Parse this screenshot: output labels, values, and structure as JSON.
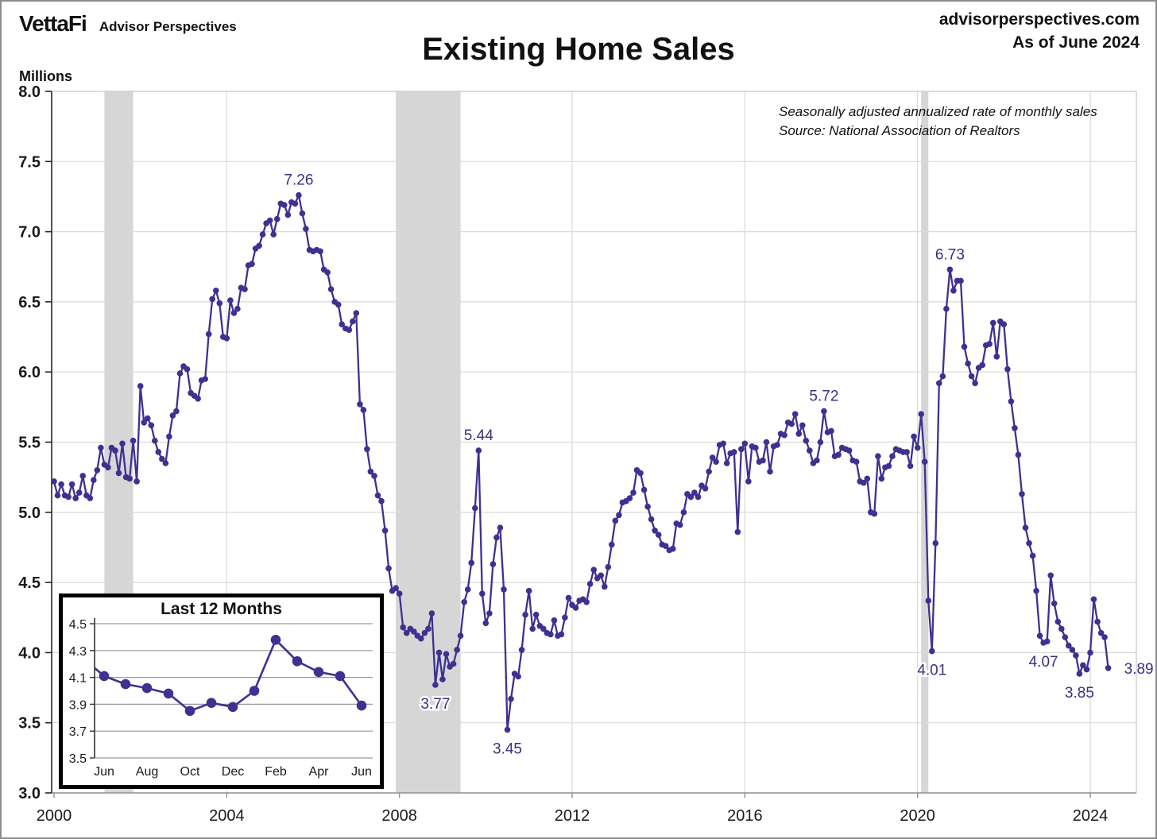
{
  "header": {
    "logo_text": "VettaFi",
    "logo_sub": "Advisor Perspectives",
    "site": "advisorperspectives.com",
    "as_of": "As of June 2024"
  },
  "chart_data": {
    "type": "line",
    "title": "Existing Home Sales",
    "ylabel": "Millions",
    "note_line1": "Seasonally adjusted annualized rate of monthly sales",
    "note_line2": "Source: National Association of Realtors",
    "ylim": [
      3.0,
      8.0
    ],
    "grid": true,
    "y_ticks": [
      "8.0",
      "7.5",
      "7.0",
      "6.5",
      "6.0",
      "5.5",
      "5.0",
      "4.5",
      "4.0",
      "3.5",
      "3.0"
    ],
    "x_ticks": [
      {
        "label": "2000",
        "month": "2000-01"
      },
      {
        "label": "2004",
        "month": "2004-01"
      },
      {
        "label": "2008",
        "month": "2008-01"
      },
      {
        "label": "2012",
        "month": "2012-01"
      },
      {
        "label": "2016",
        "month": "2016-01"
      },
      {
        "label": "2020",
        "month": "2020-01"
      },
      {
        "label": "2024",
        "month": "2024-01"
      }
    ],
    "start_month": "2000-01",
    "end_month": "2024-06",
    "monthly_values": [
      5.22,
      5.12,
      5.2,
      5.12,
      5.11,
      5.2,
      5.1,
      5.14,
      5.26,
      5.12,
      5.1,
      5.23,
      5.3,
      5.46,
      5.34,
      5.32,
      5.46,
      5.44,
      5.28,
      5.49,
      5.25,
      5.24,
      5.51,
      5.22,
      5.9,
      5.64,
      5.67,
      5.62,
      5.51,
      5.43,
      5.38,
      5.35,
      5.54,
      5.69,
      5.72,
      5.99,
      6.04,
      6.02,
      5.85,
      5.83,
      5.81,
      5.94,
      5.95,
      6.27,
      6.52,
      6.58,
      6.49,
      6.25,
      6.24,
      6.51,
      6.42,
      6.45,
      6.6,
      6.59,
      6.76,
      6.77,
      6.88,
      6.9,
      6.98,
      7.06,
      7.08,
      6.98,
      7.09,
      7.2,
      7.19,
      7.12,
      7.21,
      7.2,
      7.26,
      7.13,
      7.02,
      6.87,
      6.86,
      6.87,
      6.86,
      6.73,
      6.71,
      6.59,
      6.5,
      6.48,
      6.34,
      6.31,
      6.3,
      6.36,
      6.42,
      5.77,
      5.73,
      5.45,
      5.29,
      5.26,
      5.12,
      5.08,
      4.87,
      4.6,
      4.44,
      4.46,
      4.42,
      4.18,
      4.14,
      4.17,
      4.15,
      4.12,
      4.1,
      4.14,
      4.17,
      4.28,
      3.77,
      4.0,
      3.81,
      3.99,
      3.9,
      3.92,
      4.02,
      4.12,
      4.36,
      4.45,
      4.64,
      5.03,
      5.44,
      4.42,
      4.21,
      4.28,
      4.63,
      4.82,
      4.89,
      4.45,
      3.45,
      3.67,
      3.85,
      3.83,
      4.02,
      4.27,
      4.44,
      4.17,
      4.27,
      4.19,
      4.17,
      4.14,
      4.13,
      4.23,
      4.12,
      4.13,
      4.25,
      4.39,
      4.34,
      4.32,
      4.37,
      4.38,
      4.36,
      4.49,
      4.59,
      4.53,
      4.55,
      4.47,
      4.61,
      4.77,
      4.94,
      4.98,
      5.07,
      5.08,
      5.1,
      5.14,
      5.3,
      5.28,
      5.16,
      5.04,
      4.95,
      4.87,
      4.84,
      4.77,
      4.76,
      4.73,
      4.74,
      4.92,
      4.91,
      5.0,
      5.13,
      5.11,
      5.14,
      5.11,
      5.19,
      5.17,
      5.29,
      5.39,
      5.36,
      5.48,
      5.49,
      5.35,
      5.42,
      5.43,
      4.86,
      5.45,
      5.49,
      5.22,
      5.47,
      5.46,
      5.36,
      5.37,
      5.5,
      5.29,
      5.47,
      5.48,
      5.56,
      5.55,
      5.64,
      5.63,
      5.7,
      5.56,
      5.62,
      5.51,
      5.44,
      5.35,
      5.37,
      5.5,
      5.72,
      5.57,
      5.58,
      5.4,
      5.41,
      5.46,
      5.45,
      5.44,
      5.37,
      5.36,
      5.22,
      5.21,
      5.24,
      5.0,
      4.99,
      5.4,
      5.24,
      5.32,
      5.33,
      5.4,
      5.45,
      5.44,
      5.43,
      5.43,
      5.33,
      5.54,
      5.46,
      5.7,
      5.36,
      4.37,
      4.01,
      4.78,
      5.92,
      5.97,
      6.45,
      6.73,
      6.58,
      6.65,
      6.65,
      6.18,
      6.06,
      5.97,
      5.92,
      6.03,
      6.05,
      6.19,
      6.2,
      6.35,
      6.11,
      6.36,
      6.34,
      6.02,
      5.79,
      5.6,
      5.41,
      5.13,
      4.89,
      4.78,
      4.69,
      4.44,
      4.12,
      4.07,
      4.08,
      4.55,
      4.35,
      4.22,
      4.17,
      4.11,
      4.05,
      4.02,
      3.98,
      3.85,
      3.91,
      3.88,
      4.0,
      4.38,
      4.22,
      4.14,
      4.11,
      3.89
    ],
    "recession_bands": [
      {
        "start": "2001-03",
        "end": "2001-11"
      },
      {
        "start": "2007-12",
        "end": "2009-06"
      },
      {
        "start": "2020-02",
        "end": "2020-04"
      }
    ],
    "annotations": [
      {
        "label": "7.26",
        "month": "2005-09",
        "value": 7.26,
        "position": "above",
        "halo": false
      },
      {
        "label": "5.44",
        "month": "2009-11",
        "value": 5.44,
        "position": "above",
        "halo": false
      },
      {
        "label": "3.77",
        "month": "2008-11",
        "value": 3.77,
        "position": "below",
        "halo": true
      },
      {
        "label": "3.45",
        "month": "2010-07",
        "value": 3.45,
        "position": "below",
        "halo": false
      },
      {
        "label": "5.72",
        "month": "2017-11",
        "value": 5.72,
        "position": "above",
        "halo": false
      },
      {
        "label": "6.73",
        "month": "2020-10",
        "value": 6.73,
        "position": "above",
        "halo": false
      },
      {
        "label": "4.01",
        "month": "2020-05",
        "value": 4.01,
        "position": "below",
        "halo": true
      },
      {
        "label": "4.07",
        "month": "2022-12",
        "value": 4.07,
        "position": "below",
        "halo": false
      },
      {
        "label": "3.85",
        "month": "2023-10",
        "value": 3.85,
        "position": "below",
        "halo": false
      },
      {
        "label": "3.89",
        "month": "2024-06",
        "value": 3.89,
        "position": "right",
        "halo": false
      }
    ],
    "inset": {
      "title": "Last 12 Months",
      "ylim": [
        3.5,
        4.5
      ],
      "y_ticks": [
        "4.5",
        "4.3",
        "4.1",
        "3.9",
        "3.7",
        "3.5"
      ],
      "months": [
        "Jun",
        "Jul",
        "Aug",
        "Sep",
        "Oct",
        "Nov",
        "Dec",
        "Jan",
        "Feb",
        "Mar",
        "Apr",
        "May",
        "Jun"
      ],
      "x_tick_every": 2,
      "values": [
        4.11,
        4.05,
        4.02,
        3.98,
        3.85,
        3.91,
        3.88,
        4.0,
        4.38,
        4.22,
        4.14,
        4.11,
        3.89
      ],
      "lead_in_value": 4.17
    },
    "colors": {
      "line": "#3d3191",
      "annotation": "#3a3080",
      "band": "#d6d6d6",
      "grid": "#d9d9d9",
      "axis_dark": "#262626",
      "axis_light": "#8f8f8f",
      "spine_light": "#c8c8c8",
      "text": "#1a1a1a"
    }
  }
}
